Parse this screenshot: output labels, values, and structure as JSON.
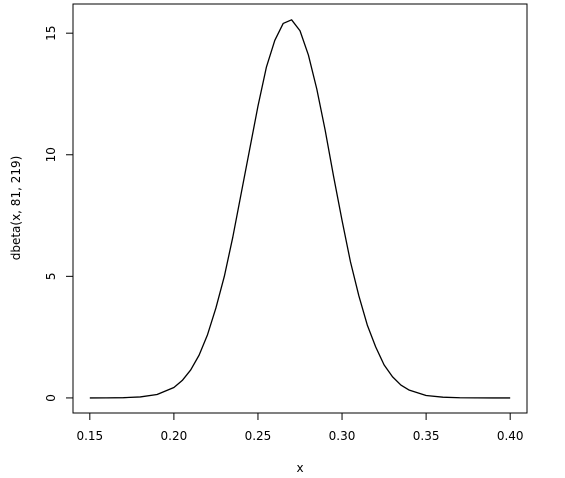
{
  "chart_data": {
    "type": "line",
    "x_label": "x",
    "y_label": "dbeta(x, 81, 219)",
    "x": [
      0.15,
      0.16,
      0.17,
      0.18,
      0.19,
      0.2,
      0.205,
      0.21,
      0.215,
      0.22,
      0.225,
      0.23,
      0.235,
      0.24,
      0.245,
      0.25,
      0.255,
      0.26,
      0.265,
      0.27,
      0.275,
      0.28,
      0.285,
      0.29,
      0.295,
      0.3,
      0.305,
      0.31,
      0.315,
      0.32,
      0.325,
      0.33,
      0.335,
      0.34,
      0.35,
      0.36,
      0.37,
      0.38,
      0.39,
      0.4
    ],
    "series": [
      {
        "color": "#000000",
        "values": [
          0.0003,
          0.002,
          0.0095,
          0.04,
          0.14,
          0.43,
          0.72,
          1.15,
          1.76,
          2.6,
          3.7,
          5.0,
          6.6,
          8.4,
          10.2,
          12.0,
          13.6,
          14.7,
          15.4,
          15.55,
          15.1,
          14.1,
          12.7,
          11.0,
          9.1,
          7.3,
          5.6,
          4.2,
          3.0,
          2.1,
          1.36,
          0.87,
          0.53,
          0.32,
          0.1,
          0.03,
          0.007,
          0.002,
          0.0004,
          0.0001
        ]
      }
    ],
    "xlim": [
      0.14,
      0.41
    ],
    "ylim": [
      -0.62,
      16.2
    ],
    "xticks": [
      {
        "value": 0.15,
        "label": "0.15"
      },
      {
        "value": 0.2,
        "label": "0.20"
      },
      {
        "value": 0.25,
        "label": "0.25"
      },
      {
        "value": 0.3,
        "label": "0.30"
      },
      {
        "value": 0.35,
        "label": "0.35"
      },
      {
        "value": 0.4,
        "label": "0.40"
      }
    ],
    "yticks": [
      0,
      5,
      10,
      15
    ]
  }
}
